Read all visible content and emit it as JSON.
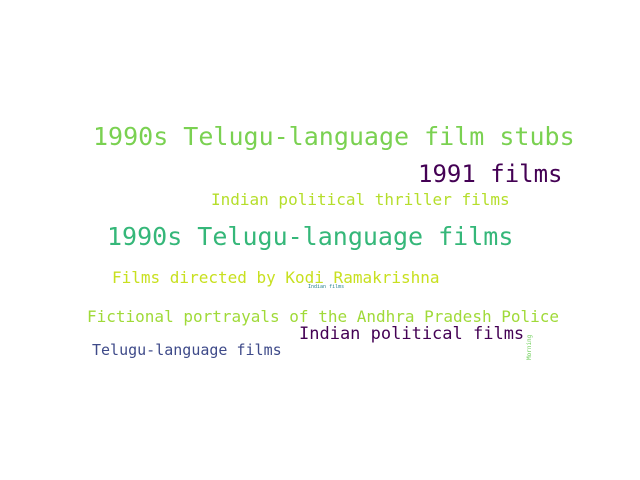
{
  "words": [
    {
      "text": "1990s Telugu-language film stubs",
      "color": "#7ad151"
    },
    {
      "text": "1991 films",
      "color": "#440154"
    },
    {
      "text": "Indian political thriller films",
      "color": "#b5de2b"
    },
    {
      "text": "1990s Telugu-language films",
      "color": "#35b779"
    },
    {
      "text": "Films directed by Kodi Ramakrishna",
      "color": "#c8e020"
    },
    {
      "text": "Indian films",
      "color": "#26828e"
    },
    {
      "text": "Fictional portrayals of the Andhra Pradesh Police",
      "color": "#a0da39"
    },
    {
      "text": "Indian political films",
      "color": "#440154"
    },
    {
      "text": "Telugu-language films",
      "color": "#3e4a89"
    },
    {
      "text": "Morning",
      "color": "#6ece58"
    }
  ]
}
